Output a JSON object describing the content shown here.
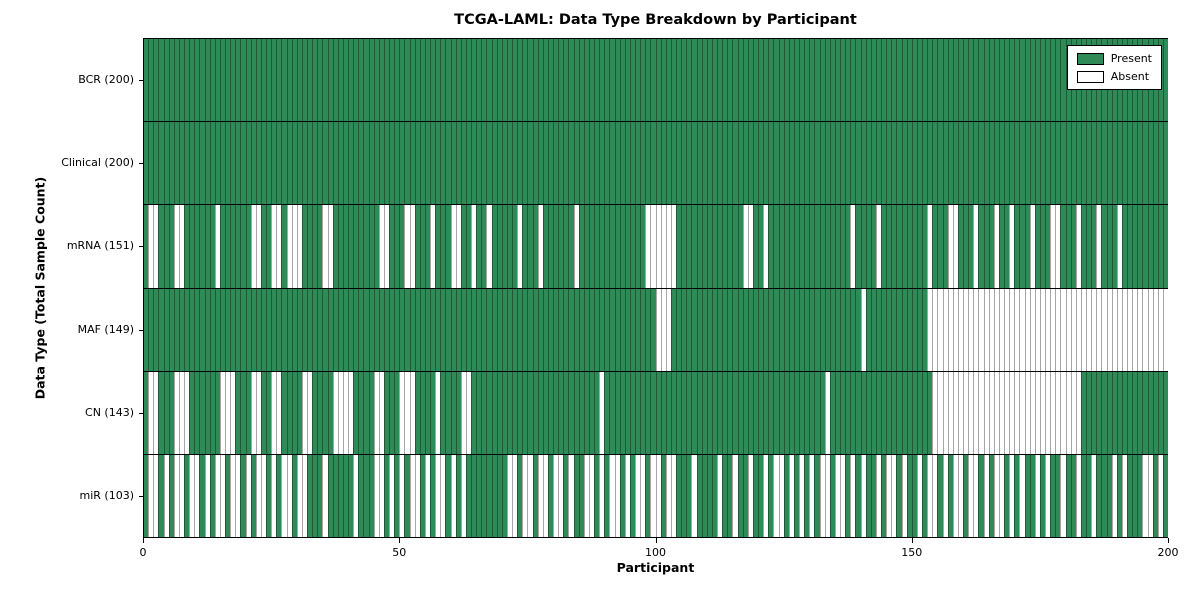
{
  "chart_data": {
    "type": "heatmap",
    "title": "TCGA-LAML: Data Type Breakdown by Participant",
    "xlabel": "Participant",
    "ylabel": "Data Type (Total Sample Count)",
    "x_range": [
      0,
      200
    ],
    "x_ticks": [
      0,
      50,
      100,
      150,
      200
    ],
    "n_participants": 200,
    "grid": false,
    "legend_position": "upper right",
    "legend": [
      {
        "label": "Present",
        "color": "#2e8b57"
      },
      {
        "label": "Absent",
        "color": "#ffffff"
      }
    ],
    "colors": {
      "present": "#2e8b57",
      "absent": "#ffffff",
      "edge": "#000000"
    },
    "rows": [
      {
        "data_type": "BCR",
        "label": "BCR (200)",
        "present_count": 200,
        "presence": [
          "1111111111",
          "1111111111",
          "1111111111",
          "1111111111",
          "1111111111",
          "1111111111",
          "1111111111",
          "1111111111",
          "1111111111",
          "1111111111",
          "1111111111",
          "1111111111",
          "1111111111",
          "1111111111",
          "1111111111",
          "1111111111",
          "1111111111",
          "1111111111",
          "1111111111",
          "1111111111"
        ]
      },
      {
        "data_type": "Clinical",
        "label": "Clinical (200)",
        "present_count": 200,
        "presence": [
          "1111111111",
          "1111111111",
          "1111111111",
          "1111111111",
          "1111111111",
          "1111111111",
          "1111111111",
          "1111111111",
          "1111111111",
          "1111111111",
          "1111111111",
          "1111111111",
          "1111111111",
          "1111111111",
          "1111111111",
          "1111111111",
          "1111111111",
          "1111111111",
          "1111111111",
          "1111111111"
        ]
      },
      {
        "data_type": "mRNA",
        "label": "mRNA (151)",
        "present_count": 151,
        "presence": [
          "1001110011",
          "1111011111",
          "1001100100",
          "0111100111",
          "1111110011",
          "1001110111",
          "0011011011",
          "1110111011",
          "1111011111",
          "1111111100",
          "0000111111",
          "1111111001",
          "1011111111",
          "1111111101",
          "1110111111",
          "1110111001",
          "1101110110",
          "1110111001",
          "1101110111",
          "0111111111"
        ]
      },
      {
        "data_type": "MAF",
        "label": "MAF (149)",
        "present_count": 149,
        "presence": [
          "1111111111",
          "1111111111",
          "1111111111",
          "1111111111",
          "1111111111",
          "1111111111",
          "1111111111",
          "1111111111",
          "1111111111",
          "1111111111",
          "0001111111",
          "1111111111",
          "1111111111",
          "1111111111",
          "0111111111",
          "1110000000",
          "0000000000",
          "0000000000",
          "0000000000",
          "0000000000"
        ]
      },
      {
        "data_type": "CN",
        "label": "CN (143)",
        "present_count": 143,
        "presence": [
          "1001110001",
          "1111100011",
          "1001100111",
          "1001111000",
          "0111100111",
          "0001111011",
          "1100111111",
          "1111111111",
          "1111111110",
          "1111111111",
          "1111111111",
          "1111111111",
          "1111111111",
          "1110111111",
          "1111111111",
          "1111000000",
          "0000000000",
          "0000000000",
          "0001111111",
          "1111111111"
        ]
      },
      {
        "data_type": "miR",
        "label": "miR (103)",
        "present_count": 103,
        "presence": [
          "1001010010",
          "0101001001",
          "0100101001",
          "0011101111",
          "1011100101",
          "0100101001",
          "0101111111",
          "1001001001",
          "0010110010",
          "1001010010",
          "0100111011",
          "1101101101",
          "1010010101",
          "0100100101",
          "0110100101",
          "1010010100",
          "1001010010",
          "1011010110",
          "1101101110",
          "1011100101"
        ]
      }
    ]
  }
}
